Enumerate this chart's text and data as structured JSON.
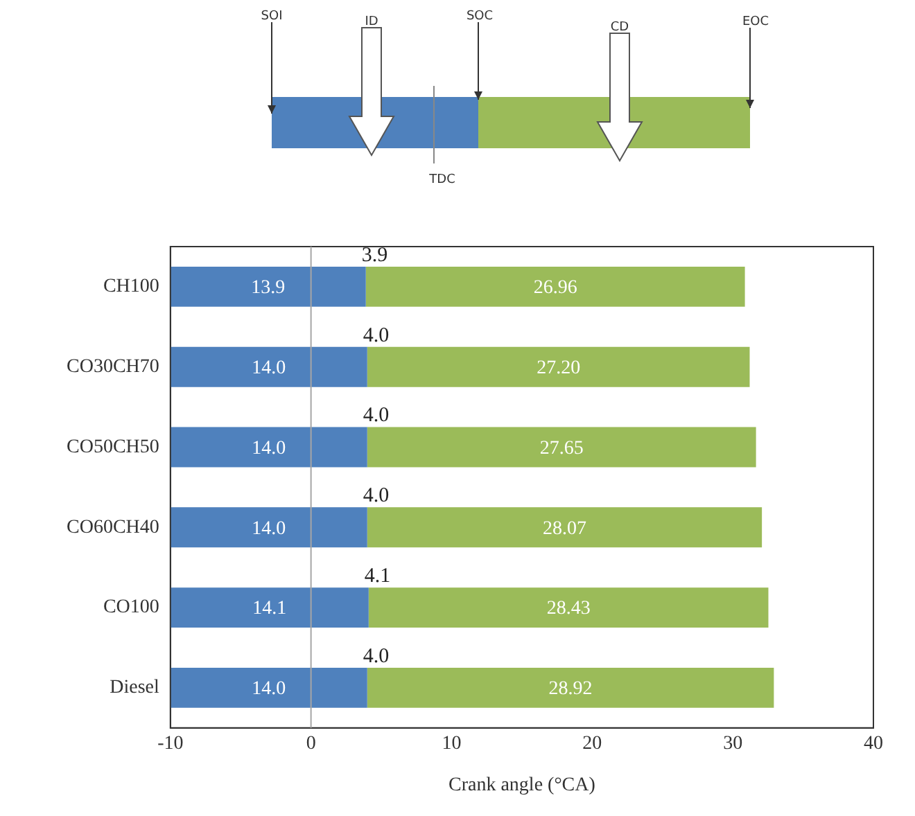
{
  "chart_data": {
    "type": "bar",
    "orientation": "horizontal",
    "xlabel": "Crank angle (°CA)",
    "categories": [
      "CH100",
      "CO30CH70",
      "CO50CH50",
      "CO60CH40",
      "CO100",
      "Diesel"
    ],
    "series": [
      {
        "color": "#4f81bd",
        "base": [
          -10,
          -10,
          -10,
          -10,
          -10,
          -10
        ],
        "values": [
          13.9,
          14.0,
          14.0,
          14.0,
          14.1,
          14.0
        ],
        "value_labels": [
          "13.9",
          "14.0",
          "14.0",
          "14.0",
          "14.1",
          "14.0"
        ]
      },
      {
        "color": "#9bbb59",
        "base": [
          3.9,
          4.0,
          4.0,
          4.0,
          4.1,
          4.0
        ],
        "values": [
          26.96,
          27.2,
          27.65,
          28.07,
          28.43,
          28.92
        ],
        "value_labels": [
          "26.96",
          "27.20",
          "27.65",
          "28.07",
          "28.43",
          "28.92"
        ]
      }
    ],
    "xlim": [
      -10,
      40
    ],
    "xticks": [
      -10,
      0,
      10,
      20,
      30,
      40
    ],
    "grid": false,
    "legend": false,
    "ref_lines": [
      {
        "axis": "x",
        "value": 0,
        "color": "#a6a6a6"
      }
    ],
    "annotations": [
      {
        "text": "3.9",
        "x": 3.9,
        "y": "CH100"
      },
      {
        "text": "4.0",
        "x": 4.0,
        "y": "CO30CH70"
      },
      {
        "text": "4.0",
        "x": 4.0,
        "y": "CO50CH50"
      },
      {
        "text": "4.0",
        "x": 4.0,
        "y": "CO60CH40"
      },
      {
        "text": "4.1",
        "x": 4.1,
        "y": "CO100"
      },
      {
        "text": "4.0",
        "x": 4.0,
        "y": "Diesel"
      },
      "SOI",
      "ID",
      "SOC",
      "CD",
      "EOC",
      "TDC"
    ]
  }
}
